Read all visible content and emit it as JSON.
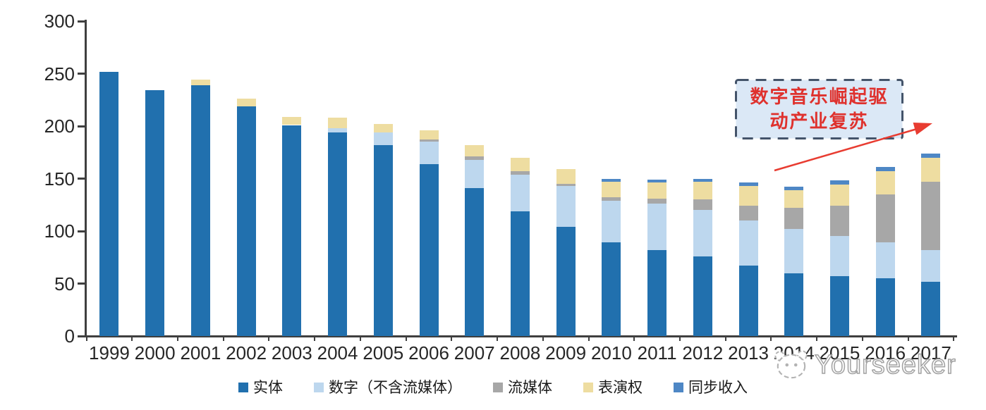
{
  "chart_data": {
    "type": "bar",
    "stacked": true,
    "title": "",
    "categories": [
      "1999",
      "2000",
      "2001",
      "2002",
      "2003",
      "2004",
      "2005",
      "2006",
      "2007",
      "2008",
      "2009",
      "2010",
      "2011",
      "2012",
      "2013",
      "2014",
      "2015",
      "2016",
      "2017"
    ],
    "series": [
      {
        "key": "physical",
        "name": "实体",
        "color": "#2170AE",
        "values": [
          252,
          234,
          239,
          219,
          201,
          194,
          182,
          164,
          141,
          119,
          104,
          89,
          82,
          76,
          67,
          60,
          57,
          55,
          52
        ]
      },
      {
        "key": "digital-excl-streaming",
        "name": "数字（不含流媒体）",
        "color": "#BDD7EE",
        "values": [
          0,
          0,
          0,
          0,
          0,
          4,
          12,
          21,
          27,
          35,
          39,
          40,
          44,
          44,
          43,
          42,
          38,
          34,
          30
        ]
      },
      {
        "key": "streaming",
        "name": "流媒体",
        "color": "#A7A7A7",
        "values": [
          0,
          0,
          0,
          0,
          0,
          0,
          0,
          2,
          3,
          3,
          2,
          3,
          5,
          10,
          14,
          20,
          29,
          46,
          65
        ]
      },
      {
        "key": "performance-rights",
        "name": "表演权",
        "color": "#EEDDA1",
        "values": [
          0,
          0,
          5,
          7,
          8,
          10,
          8,
          9,
          11,
          13,
          14,
          15,
          15,
          17,
          19,
          17,
          20,
          22,
          23
        ]
      },
      {
        "key": "sync",
        "name": "同步收入",
        "color": "#4E87C5",
        "values": [
          0,
          0,
          0,
          0,
          0,
          0,
          0,
          0,
          0,
          0,
          0,
          3,
          3,
          3,
          3,
          3,
          4,
          4,
          4
        ]
      }
    ],
    "ylim": [
      0,
      300
    ],
    "yticks": [
      0,
      50,
      100,
      150,
      200,
      250,
      300
    ],
    "grid": false,
    "legend_position": "bottom"
  },
  "annotation": {
    "line1": "数字音乐崛起驱",
    "line2": "动产业复苏",
    "text_color": "#DF312D",
    "border_color": "#44546A",
    "fill_color": "#DBE8F6",
    "arrow_color": "#E83C31"
  },
  "watermark": {
    "text": "Yourseeker"
  }
}
